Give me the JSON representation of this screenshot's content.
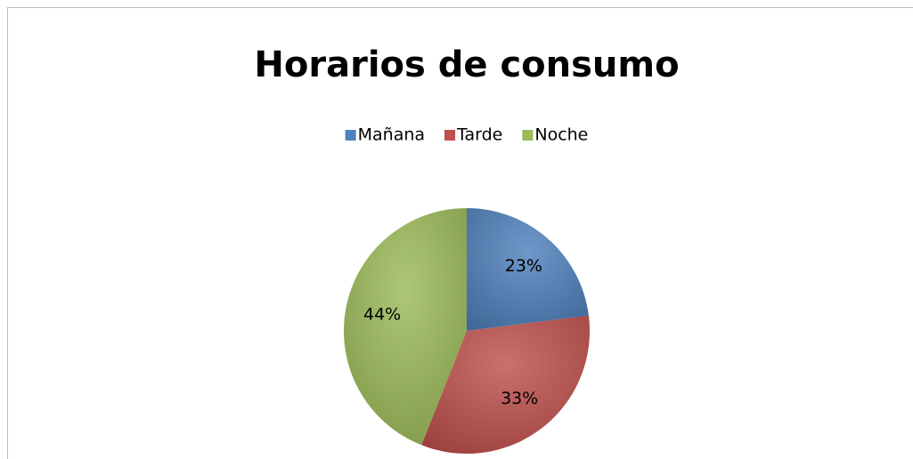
{
  "chart_data": {
    "type": "pie",
    "title": "Horarios de consumo",
    "categories": [
      "Mañana",
      "Tarde",
      "Noche"
    ],
    "values": [
      23,
      33,
      44
    ],
    "value_labels": [
      "23%",
      "33%",
      "44%"
    ],
    "colors": [
      "#4f81bd",
      "#c0504d",
      "#9bbb59"
    ],
    "legend": "top"
  }
}
